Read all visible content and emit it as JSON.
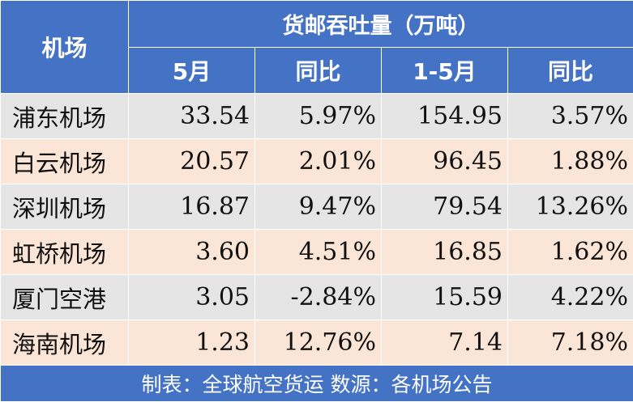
{
  "header": {
    "airport_col": "机场",
    "group_title": "货邮吞吐量（万吨）",
    "sub": [
      "5月",
      "同比",
      "1-5月",
      "同比"
    ]
  },
  "rows": [
    {
      "name": "浦东机场",
      "may": "33.54",
      "may_yoy": "5.97%",
      "ytd": "154.95",
      "ytd_yoy": "3.57%"
    },
    {
      "name": "白云机场",
      "may": "20.57",
      "may_yoy": "2.01%",
      "ytd": "96.45",
      "ytd_yoy": "1.88%"
    },
    {
      "name": "深圳机场",
      "may": "16.87",
      "may_yoy": "9.47%",
      "ytd": "79.54",
      "ytd_yoy": "13.26%"
    },
    {
      "name": "虹桥机场",
      "may": "3.60",
      "may_yoy": "4.51%",
      "ytd": "16.85",
      "ytd_yoy": "1.62%"
    },
    {
      "name": "厦门空港",
      "may": "3.05",
      "may_yoy": "-2.84%",
      "ytd": "15.59",
      "ytd_yoy": "4.22%"
    },
    {
      "name": "海南机场",
      "may": "1.23",
      "may_yoy": "12.76%",
      "ytd": "7.14",
      "ytd_yoy": "7.18%"
    }
  ],
  "footer": "制表：全球航空货运 数源：各机场公告",
  "colors": {
    "header_bg": "#4472c4",
    "row_gray": "#e5e5e5",
    "row_peach": "#fbe5d6"
  }
}
